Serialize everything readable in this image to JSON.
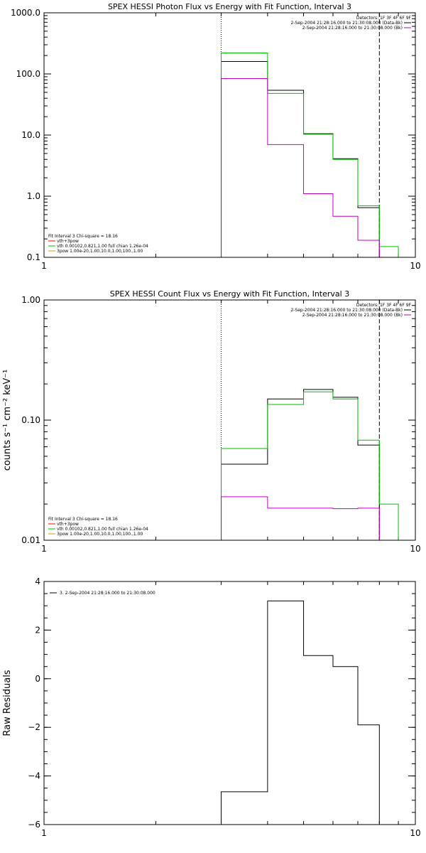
{
  "chart_data": [
    {
      "type": "line",
      "title": "SPEX HESSI Photon Flux vs Energy with Fit Function, Interval 3",
      "xscale": "log",
      "yscale": "log",
      "xlim": [
        1,
        10
      ],
      "ylim": [
        0.1,
        1000
      ],
      "xticks": [
        {
          "v": 1,
          "label": "1"
        },
        {
          "v": 10,
          "label": "10"
        }
      ],
      "yticks": [
        {
          "v": 0.1,
          "label": "0.1"
        },
        {
          "v": 1,
          "label": "1.0"
        },
        {
          "v": 10,
          "label": "10.0"
        },
        {
          "v": 100,
          "label": "100.0"
        },
        {
          "v": 1000,
          "label": "1000.0"
        }
      ],
      "ylabel": "",
      "vlines": [
        {
          "x": 3,
          "style": "dotted"
        },
        {
          "x": 8,
          "style": "dashed"
        }
      ],
      "series": [
        {
          "color": "#000000",
          "bins": [
            [
              3,
              4,
              160
            ],
            [
              4,
              5,
              54
            ],
            [
              5,
              6,
              10.5
            ],
            [
              6,
              7,
              4.1
            ],
            [
              7,
              8,
              0.65
            ]
          ]
        },
        {
          "color": "#00c000",
          "bins": [
            [
              3,
              4,
              220
            ],
            [
              4,
              5,
              48
            ],
            [
              5,
              6,
              10.3
            ],
            [
              6,
              7,
              4.0
            ],
            [
              7,
              8,
              0.7
            ],
            [
              8,
              9,
              0.15
            ]
          ]
        },
        {
          "color": "#c000c0",
          "bins": [
            [
              3,
              4,
              84
            ],
            [
              4,
              5,
              7.0
            ],
            [
              5,
              6,
              1.1
            ],
            [
              6,
              7,
              0.47
            ],
            [
              7,
              8,
              0.19
            ]
          ]
        }
      ],
      "legend_right": [
        {
          "text": "Detectors: 1F 3F 4F 6F 9F",
          "color": ""
        },
        {
          "text": "2-Sep-2004 21:28:16.000 to 21:30:08.000 (Data-Bk)",
          "color": "#000000"
        },
        {
          "text": "2-Sep-2004 21:28:16.000 to 21:30:08.000 (Bk)",
          "color": "#c000c0"
        }
      ],
      "legend_left": [
        {
          "text": "Fit Interval 3   Chi-square = 18.16",
          "color": ""
        },
        {
          "text": "vth+3pow",
          "color": "#ff0000"
        },
        {
          "text": "vth 0.00102,0.821,1.00  full chian 1.26e-04",
          "color": "#00c000"
        },
        {
          "text": "3pow 1.00e-20,1.00,10.0,1.00,100.,1.00",
          "color": "#d0a000"
        }
      ]
    },
    {
      "type": "line",
      "title": "SPEX HESSI Count Flux vs Energy with Fit Function, Interval 3",
      "xscale": "log",
      "yscale": "log",
      "xlim": [
        1,
        10
      ],
      "ylim": [
        0.01,
        1
      ],
      "xticks": [
        {
          "v": 1,
          "label": "1"
        },
        {
          "v": 10,
          "label": "10"
        }
      ],
      "yticks": [
        {
          "v": 0.01,
          "label": "0.01"
        },
        {
          "v": 0.1,
          "label": "0.10"
        },
        {
          "v": 1,
          "label": "1.00"
        }
      ],
      "ylabel": "counts s⁻¹ cm⁻² keV⁻¹",
      "vlines": [
        {
          "x": 3,
          "style": "dotted"
        },
        {
          "x": 8,
          "style": "dashed"
        }
      ],
      "series": [
        {
          "color": "#000000",
          "bins": [
            [
              3,
              4,
              0.043
            ],
            [
              4,
              5,
              0.15
            ],
            [
              5,
              6,
              0.18
            ],
            [
              6,
              7,
              0.155
            ],
            [
              7,
              8,
              0.062
            ]
          ]
        },
        {
          "color": "#00c000",
          "bins": [
            [
              3,
              4,
              0.058
            ],
            [
              4,
              5,
              0.135
            ],
            [
              5,
              6,
              0.172
            ],
            [
              6,
              7,
              0.15
            ],
            [
              7,
              8,
              0.068
            ],
            [
              8,
              9,
              0.02
            ]
          ]
        },
        {
          "color": "#c000c0",
          "bins": [
            [
              3,
              4,
              0.023
            ],
            [
              4,
              5,
              0.0185
            ],
            [
              5,
              6,
              0.0185
            ],
            [
              6,
              7,
              0.0183
            ],
            [
              7,
              8,
              0.0185
            ]
          ]
        }
      ],
      "legend_right": [
        {
          "text": "Detectors: 1F 3F 4F 6F 9F",
          "color": ""
        },
        {
          "text": "2-Sep-2004 21:28:16.000 to 21:30:08.000 (Data-Bk)",
          "color": "#000000"
        },
        {
          "text": "2-Sep-2004 21:28:16.000 to 21:30:08.000 (Bk)",
          "color": "#c000c0"
        }
      ],
      "legend_left": [
        {
          "text": "Fit Interval 3   Chi-square = 18.16",
          "color": ""
        },
        {
          "text": "vth+3pow",
          "color": "#ff0000"
        },
        {
          "text": "vth 0.00102,0.821,1.00  full chian 1.26e-04",
          "color": "#00c000"
        },
        {
          "text": "3pow 1.00e-20,1.00,10.0,1.00,100.,1.00",
          "color": "#d0a000"
        }
      ]
    },
    {
      "type": "line",
      "title": "",
      "xscale": "log",
      "yscale": "linear",
      "xlim": [
        1,
        10
      ],
      "ylim": [
        -6,
        4
      ],
      "xticks": [
        {
          "v": 1,
          "label": "1"
        },
        {
          "v": 10,
          "label": "10"
        }
      ],
      "yticks": [
        {
          "v": -6,
          "label": "−6"
        },
        {
          "v": -4,
          "label": "−4"
        },
        {
          "v": -2,
          "label": "−2"
        },
        {
          "v": 0,
          "label": "0"
        },
        {
          "v": 2,
          "label": "2"
        },
        {
          "v": 4,
          "label": "4"
        }
      ],
      "ylabel": "Raw Residuals",
      "vlines": [],
      "series": [
        {
          "color": "#000000",
          "bins": [
            [
              3,
              4,
              -4.65
            ],
            [
              4,
              5,
              3.2
            ],
            [
              5,
              6,
              0.95
            ],
            [
              6,
              7,
              0.5
            ],
            [
              7,
              8,
              -1.9
            ]
          ]
        }
      ],
      "legend_right": [],
      "legend_left": [],
      "legend_top": [
        {
          "text": "3.  2-Sep-2004 21:28:16.000 to 21:30:08.000",
          "color": "#000000"
        }
      ]
    }
  ]
}
